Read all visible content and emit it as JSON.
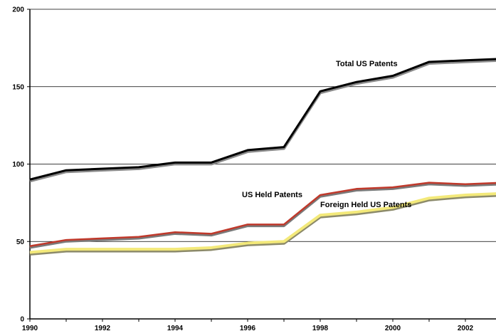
{
  "chart_data": {
    "type": "line",
    "x": [
      1990,
      1991,
      1992,
      1993,
      1994,
      1995,
      1996,
      1997,
      1998,
      1999,
      2000,
      2001,
      2002,
      2003
    ],
    "x_tick_labels": [
      "1990",
      "1992",
      "1994",
      "1996",
      "1998",
      "2000",
      "2002"
    ],
    "y_tick_labels": [
      "0",
      "50",
      "100",
      "150",
      "200"
    ],
    "ylim": [
      0,
      200
    ],
    "xlim": [
      1990,
      2003
    ],
    "grid": "horizontal",
    "series": [
      {
        "name": "Total US Patents",
        "color": "#000000",
        "values": [
          90,
          96,
          97,
          98,
          101,
          101,
          109,
          111,
          147,
          153,
          157,
          166,
          167,
          168
        ]
      },
      {
        "name": "US Held Patents",
        "color": "#c0392b",
        "values": [
          47,
          51,
          52,
          53,
          56,
          55,
          61,
          61,
          80,
          84,
          85,
          88,
          87,
          88
        ]
      },
      {
        "name": "Foreign Held US Patents",
        "color": "#f3e97a",
        "values": [
          43,
          45,
          45,
          45,
          45,
          46,
          49,
          50,
          67,
          69,
          72,
          78,
          80,
          81
        ]
      }
    ]
  }
}
